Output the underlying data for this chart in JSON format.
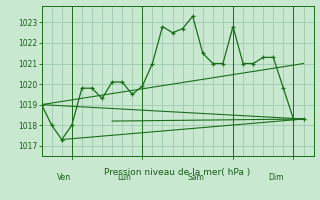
{
  "bg_color": "#c8e8d0",
  "grid_color": "#a0c8b0",
  "line_color": "#1a6e1a",
  "text_color": "#1a5c1a",
  "xlabel": "Pression niveau de la mer( hPa )",
  "ylim": [
    1016.5,
    1023.8
  ],
  "yticks": [
    1017,
    1018,
    1019,
    1020,
    1021,
    1022,
    1023
  ],
  "series1_x": [
    0,
    1,
    2,
    3,
    4,
    5,
    6,
    7,
    8,
    9,
    10,
    11,
    12,
    13,
    14,
    15,
    16,
    17,
    18,
    19,
    20,
    21,
    22,
    23,
    24,
    25,
    26
  ],
  "series1_y": [
    1019.0,
    1018.0,
    1017.3,
    1018.0,
    1019.8,
    1019.8,
    1019.3,
    1020.1,
    1020.1,
    1019.5,
    1019.9,
    1021.0,
    1022.8,
    1022.5,
    1022.7,
    1023.3,
    1021.5,
    1021.0,
    1021.0,
    1022.8,
    1021.0,
    1021.0,
    1021.3,
    1021.3,
    1019.8,
    1018.3,
    1018.3
  ],
  "trend1_x": [
    0,
    26
  ],
  "trend1_y": [
    1019.0,
    1018.3
  ],
  "trend2_x": [
    0,
    26
  ],
  "trend2_y": [
    1019.0,
    1021.0
  ],
  "trend3_x": [
    2,
    26
  ],
  "trend3_y": [
    1017.3,
    1018.3
  ],
  "flat_line_x": [
    7,
    26
  ],
  "flat_line_y": [
    1018.2,
    1018.3
  ],
  "day_positions": [
    1.5,
    7.5,
    14.5,
    22.5
  ],
  "day_labels": [
    "Ven",
    "Lun",
    "Sam",
    "Dim"
  ],
  "day_vline_x": [
    3,
    10,
    19,
    25
  ],
  "xlim": [
    0,
    27
  ]
}
